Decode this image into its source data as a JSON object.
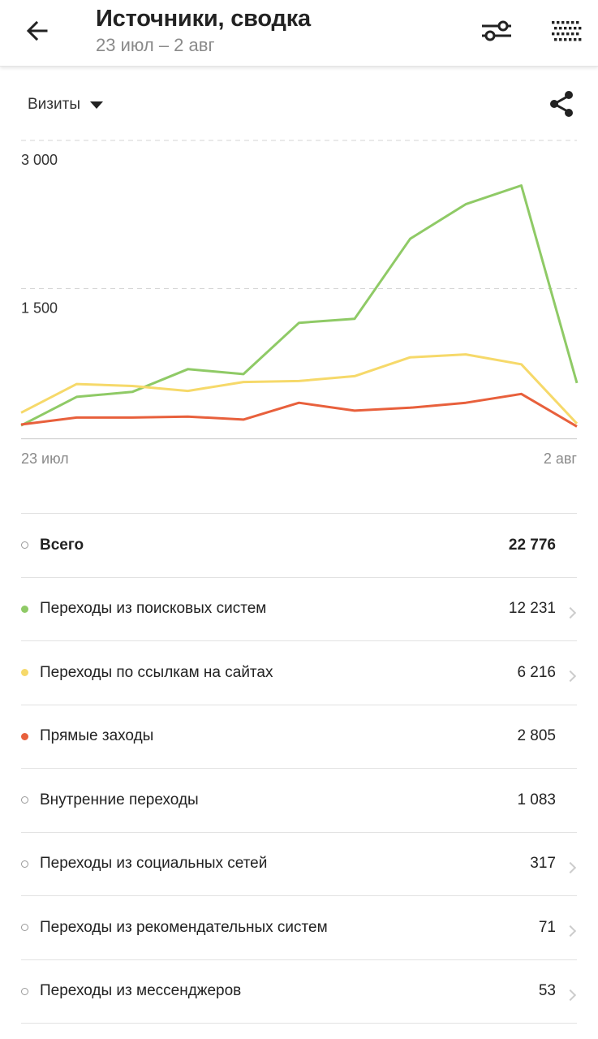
{
  "header": {
    "title": "Источники, сводка",
    "subtitle": "23 июл – 2 авг"
  },
  "icons": {
    "back": "arrow-back-icon",
    "filter": "sliders-icon",
    "apps": "grid-dots-icon",
    "share": "share-icon",
    "dropdown": "caret-down-icon"
  },
  "metric": {
    "label": "Визиты"
  },
  "chart_data": {
    "type": "line",
    "x": [
      "23 июл",
      "24 июл",
      "25 июл",
      "26 июл",
      "27 июл",
      "28 июл",
      "29 июл",
      "30 июл",
      "31 июл",
      "1 авг",
      "2 авг"
    ],
    "x_tick_labels": [
      "23 июл",
      "2 авг"
    ],
    "y_tick_labels": [
      "1 500",
      "3 000"
    ],
    "y_ticks": [
      1500,
      3000
    ],
    "ylim": [
      0,
      3000
    ],
    "grid": true,
    "series": [
      {
        "name": "Переходы из поисковых систем",
        "color": "#8fca66",
        "values": [
          130,
          420,
          470,
          700,
          650,
          1170,
          1210,
          2020,
          2370,
          2560,
          560
        ]
      },
      {
        "name": "Переходы по ссылкам на сайтах",
        "color": "#f6d96a",
        "values": [
          260,
          550,
          530,
          480,
          570,
          580,
          630,
          820,
          850,
          750,
          150
        ]
      },
      {
        "name": "Прямые заходы",
        "color": "#e8603c",
        "values": [
          140,
          210,
          210,
          220,
          190,
          360,
          280,
          310,
          360,
          450,
          120
        ]
      }
    ]
  },
  "table": {
    "rows": [
      {
        "label": "Всего",
        "value": "22 776",
        "dot": "hollow",
        "bold": true,
        "chevron": false
      },
      {
        "label": "Переходы из поисковых систем",
        "value": "12 231",
        "dot": "#8fca66",
        "bold": false,
        "chevron": true
      },
      {
        "label": "Переходы по ссылкам на сайтах",
        "value": "6 216",
        "dot": "#f6d96a",
        "bold": false,
        "chevron": true
      },
      {
        "label": "Прямые заходы",
        "value": "2 805",
        "dot": "#e8603c",
        "bold": false,
        "chevron": false
      },
      {
        "label": "Внутренние переходы",
        "value": "1 083",
        "dot": "hollow",
        "bold": false,
        "chevron": false
      },
      {
        "label": "Переходы из социальных сетей",
        "value": "317",
        "dot": "hollow",
        "bold": false,
        "chevron": true
      },
      {
        "label": "Переходы из рекомендательных систем",
        "value": "71",
        "dot": "hollow",
        "bold": false,
        "chevron": true
      },
      {
        "label": "Переходы из мессенджеров",
        "value": "53",
        "dot": "hollow",
        "bold": false,
        "chevron": true
      }
    ]
  }
}
